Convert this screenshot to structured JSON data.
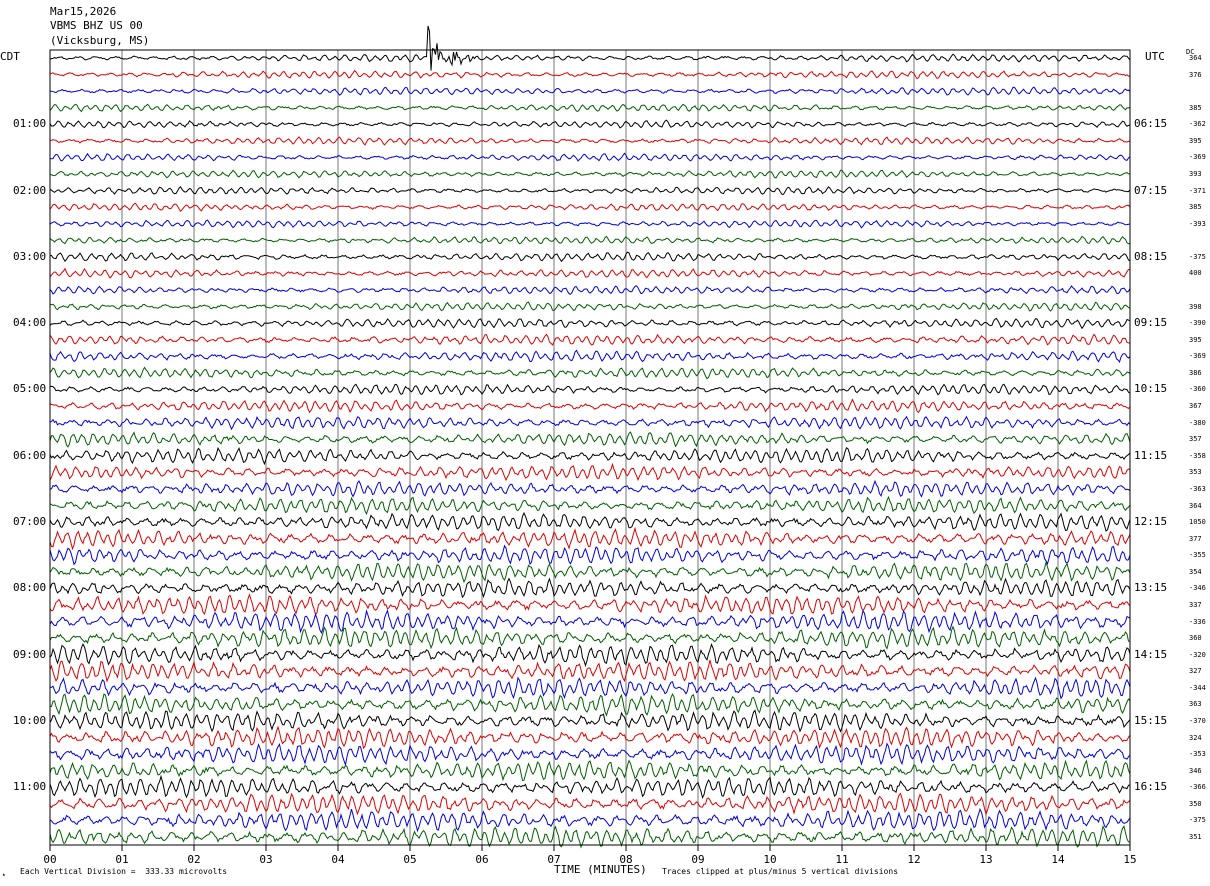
{
  "header": {
    "date": "Mar15,2026",
    "station": "VBMS BHZ US 00",
    "location": "(Vicksburg, MS)"
  },
  "corners": {
    "left_tz": "CDT",
    "right_tz": "UTC",
    "dc_label": "DC"
  },
  "chart_data": {
    "type": "line",
    "title": "",
    "xlabel": "TIME (MINUTES)",
    "x_ticks": [
      "00",
      "01",
      "02",
      "03",
      "04",
      "05",
      "06",
      "07",
      "08",
      "09",
      "10",
      "11",
      "12",
      "13",
      "14",
      "15"
    ],
    "xlim": [
      0,
      15
    ],
    "left_time_labels": [
      "01:00",
      "02:00",
      "03:00",
      "04:00",
      "05:00",
      "06:00",
      "07:00",
      "08:00",
      "09:00",
      "10:00",
      "11:00"
    ],
    "right_time_labels": [
      "06:15",
      "07:15",
      "08:15",
      "09:15",
      "10:15",
      "11:15",
      "12:15",
      "13:15",
      "14:15",
      "15:15",
      "16:15"
    ],
    "trace_colors": [
      "#000000",
      "#e00000",
      "#0000e0",
      "#006000"
    ],
    "trace_count": 48,
    "dc_offsets": [
      "364",
      "376",
      "",
      "385",
      "-362",
      "395",
      "-369",
      "393",
      "-371",
      "385",
      "-393",
      "",
      "-375",
      "400",
      "",
      "398",
      "-390",
      "395",
      "-369",
      "386",
      "-360",
      "367",
      "-380",
      "357",
      "-358",
      "353",
      "-363",
      "364",
      "1050",
      "377",
      "-355",
      "354",
      "-346",
      "337",
      "-336",
      "360",
      "-320",
      "327",
      "-344",
      "363",
      "-370",
      "324",
      "-353",
      "346",
      "-366",
      "350",
      "-375",
      "351"
    ],
    "amplitude_levels": [
      0.35,
      0.35,
      0.35,
      0.35,
      0.35,
      0.35,
      0.35,
      0.35,
      0.35,
      0.35,
      0.35,
      0.35,
      0.4,
      0.4,
      0.4,
      0.4,
      0.45,
      0.5,
      0.5,
      0.5,
      0.5,
      0.55,
      0.6,
      0.65,
      0.7,
      0.7,
      0.7,
      0.75,
      0.8,
      0.85,
      0.85,
      0.85,
      0.85,
      0.9,
      0.95,
      0.95,
      0.95,
      0.95,
      0.95,
      0.95,
      0.95,
      0.95,
      0.95,
      0.95,
      0.95,
      0.95,
      0.95,
      0.95
    ],
    "event": {
      "trace": 0,
      "minute_start": 5.25,
      "minute_end": 6.2
    }
  },
  "footer": {
    "vertical_division": "Each Vertical Division =  333.33 microvolts",
    "clipping": "Traces clipped at plus/minus 5 vertical divisions"
  }
}
